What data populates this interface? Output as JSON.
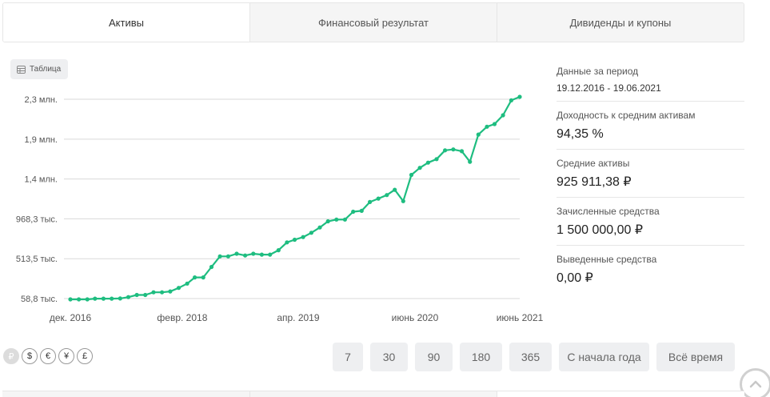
{
  "tabs": [
    {
      "label": "Активы",
      "active": true
    },
    {
      "label": "Финансовый результат",
      "active": false
    },
    {
      "label": "Дивиденды и купоны",
      "active": false
    }
  ],
  "table_button": {
    "label": "Таблица",
    "icon": "table-icon"
  },
  "info": {
    "period_label": "Данные за период",
    "period_value": "19.12.2016 - 19.06.2021",
    "yield_label": "Доходность к средним активам",
    "yield_value": "94,35 %",
    "avg_assets_label": "Средние активы",
    "avg_assets_value": "925 911,38 ₽",
    "deposited_label": "Зачисленные средства",
    "deposited_value": "1 500 000,00 ₽",
    "withdrawn_label": "Выведенные средства",
    "withdrawn_value": "0,00 ₽"
  },
  "currencies": [
    {
      "symbol": "₽",
      "active": true
    },
    {
      "symbol": "$",
      "active": false
    },
    {
      "symbol": "€",
      "active": false
    },
    {
      "symbol": "¥",
      "active": false
    },
    {
      "symbol": "£",
      "active": false
    }
  ],
  "periods": [
    {
      "label": "7",
      "width": 38
    },
    {
      "label": "30",
      "width": 47
    },
    {
      "label": "90",
      "width": 47
    },
    {
      "label": "180",
      "width": 53
    },
    {
      "label": "365",
      "width": 53
    },
    {
      "label": "С начала года",
      "width": 113
    },
    {
      "label": "Всё время",
      "width": 98
    }
  ],
  "colors": {
    "line": "#1ebd80",
    "grid": "#d9d9d9",
    "axis_text": "#555555"
  },
  "chart_data": {
    "type": "line",
    "y_ticks": [
      {
        "value": 58.8,
        "label": "58,8 тыс."
      },
      {
        "value": 513.5,
        "label": "513,5 тыс."
      },
      {
        "value": 968.3,
        "label": "968,3 тыс."
      },
      {
        "value": 1423,
        "label": "1,4 млн."
      },
      {
        "value": 1878,
        "label": "1,9 млн."
      },
      {
        "value": 2333,
        "label": "2,3 млн."
      }
    ],
    "y_unit": "тыс. ₽",
    "x_range": [
      "2016-12-19",
      "2021-06-19"
    ],
    "x_ticks": [
      {
        "date": "2016-12-19",
        "label": "дек. 2016"
      },
      {
        "date": "2018-02-01",
        "label": "февр. 2018"
      },
      {
        "date": "2019-04-01",
        "label": "апр. 2019"
      },
      {
        "date": "2020-06-01",
        "label": "июнь 2020"
      },
      {
        "date": "2021-06-19",
        "label": "июнь 2021"
      }
    ],
    "series": [
      {
        "x": [
          "2016-12-19",
          "2017-01-19",
          "2017-02-19",
          "2017-03-19",
          "2017-04-19",
          "2017-05-19",
          "2017-06-19",
          "2017-07-19",
          "2017-08-19",
          "2017-09-19",
          "2017-10-19",
          "2017-11-19",
          "2017-12-19",
          "2018-01-19",
          "2018-02-19",
          "2018-03-19",
          "2018-04-19",
          "2018-05-19",
          "2018-06-19",
          "2018-07-19",
          "2018-08-19",
          "2018-09-19",
          "2018-10-19",
          "2018-11-19",
          "2018-12-19",
          "2019-01-19",
          "2019-02-19",
          "2019-03-19",
          "2019-04-19",
          "2019-05-19",
          "2019-06-19",
          "2019-07-19",
          "2019-08-19",
          "2019-09-19",
          "2019-10-19",
          "2019-11-19",
          "2019-12-19",
          "2020-01-19",
          "2020-02-19",
          "2020-03-19",
          "2020-04-19",
          "2020-05-19",
          "2020-06-19",
          "2020-07-19",
          "2020-08-19",
          "2020-09-19",
          "2020-10-19",
          "2020-11-19",
          "2020-12-19",
          "2021-01-19",
          "2021-02-19",
          "2021-03-19",
          "2021-04-19",
          "2021-05-19",
          "2021-06-19"
        ],
        "values": [
          50,
          50,
          50,
          58,
          58,
          58,
          60,
          75,
          100,
          100,
          130,
          130,
          140,
          180,
          230,
          300,
          300,
          420,
          540,
          540,
          570,
          550,
          570,
          560,
          560,
          610,
          700,
          730,
          760,
          810,
          870,
          940,
          960,
          960,
          1050,
          1060,
          1160,
          1200,
          1240,
          1300,
          1170,
          1470,
          1550,
          1610,
          1650,
          1750,
          1760,
          1740,
          1620,
          1930,
          2020,
          2050,
          2150,
          2320,
          2360
        ]
      }
    ]
  }
}
